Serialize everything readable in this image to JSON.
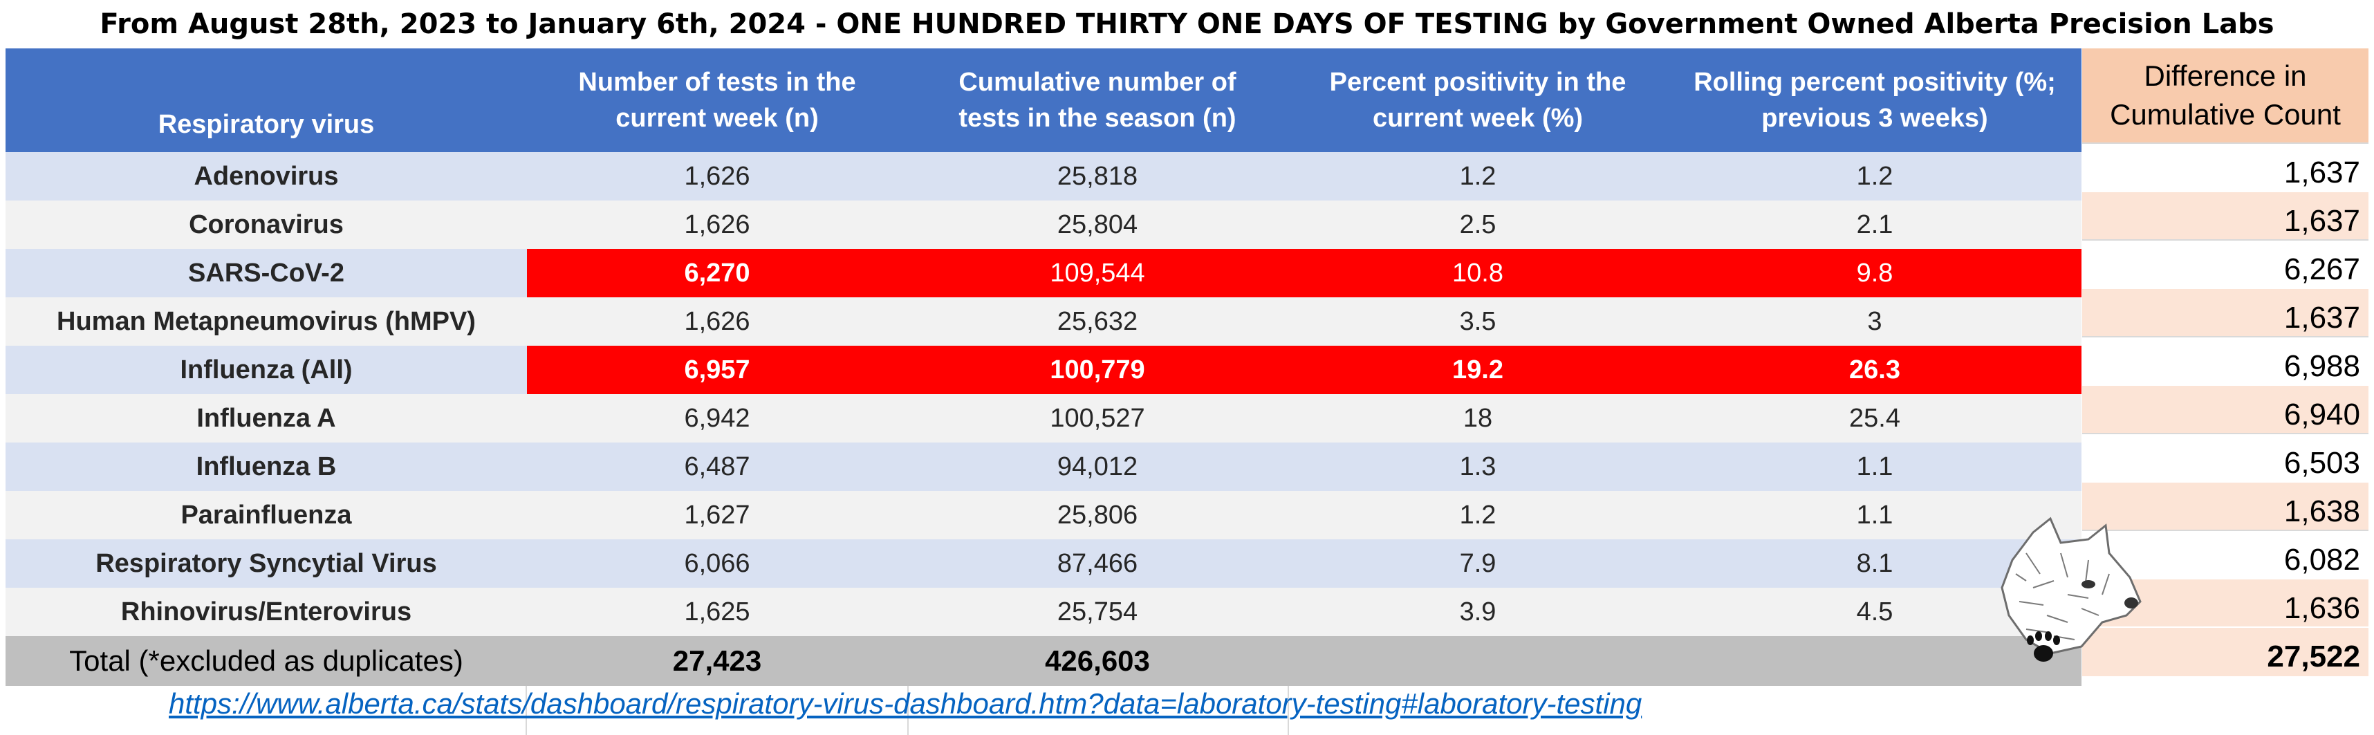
{
  "title": "From August 28th, 2023 to January 6th, 2024 - ONE HUNDRED THIRTY ONE DAYS OF TESTING by Government Owned Alberta Precision Labs",
  "headers": {
    "virus": "Respiratory virus",
    "tests_week_1": "Number of tests in the",
    "tests_week_2": "current week (n)",
    "cumulative_1": "Cumulative number of",
    "cumulative_2": "tests in the season (n)",
    "pct_week_1": "Percent positivity in the",
    "pct_week_2": "current week (%)",
    "rolling_1": "Rolling percent positivity (%;",
    "rolling_2": "previous 3 weeks)",
    "diff_1": "Difference in",
    "diff_2": "Cumulative Count"
  },
  "rows": [
    {
      "virus": "Adenovirus",
      "tests": "1,626",
      "cumulative": "25,818",
      "pct": "1.2",
      "rolling": "1.2",
      "diff": "1,637"
    },
    {
      "virus": "Coronavirus",
      "tests": "1,626",
      "cumulative": "25,804",
      "pct": "2.5",
      "rolling": "2.1",
      "diff": "1,637"
    },
    {
      "virus": "SARS-CoV-2",
      "tests": "6,270",
      "cumulative": "109,544",
      "pct": "10.8",
      "rolling": "9.8",
      "diff": "6,267"
    },
    {
      "virus": "Human Metapneumovirus (hMPV)",
      "tests": "1,626",
      "cumulative": "25,632",
      "pct": "3.5",
      "rolling": "3",
      "diff": "1,637"
    },
    {
      "virus": "Influenza (All)",
      "tests": "6,957",
      "cumulative": "100,779",
      "pct": "19.2",
      "rolling": "26.3",
      "diff": "6,988"
    },
    {
      "virus": "Influenza A",
      "tests": "6,942",
      "cumulative": "100,527",
      "pct": "18",
      "rolling": "25.4",
      "diff": "6,940"
    },
    {
      "virus": "Influenza B",
      "tests": "6,487",
      "cumulative": "94,012",
      "pct": "1.3",
      "rolling": "1.1",
      "diff": "6,503"
    },
    {
      "virus": "Parainfluenza",
      "tests": "1,627",
      "cumulative": "25,806",
      "pct": "1.2",
      "rolling": "1.1",
      "diff": "1,638"
    },
    {
      "virus": "Respiratory Syncytial Virus",
      "tests": "6,066",
      "cumulative": "87,466",
      "pct": "7.9",
      "rolling": "8.1",
      "diff": "6,082"
    },
    {
      "virus": "Rhinovirus/Enterovirus",
      "tests": "1,625",
      "cumulative": "25,754",
      "pct": "3.9",
      "rolling": "4.5",
      "diff": "1,636"
    }
  ],
  "total": {
    "label": "Total (*excluded as duplicates)",
    "tests": "27,423",
    "cumulative": "426,603",
    "diff": "27,522"
  },
  "link": "https://www.alberta.ca/stats/dashboard/respiratory-virus-dashboard.htm?data=laboratory-testing#laboratory-testing",
  "colors": {
    "header": "#4472c4",
    "highlight": "#ff0000",
    "diff_header": "#f8cbad",
    "diff_cell": "#fce4d6",
    "total": "#bfbfbf"
  },
  "icons": {
    "logo": "wolf-head-with-paw-print-logo"
  }
}
